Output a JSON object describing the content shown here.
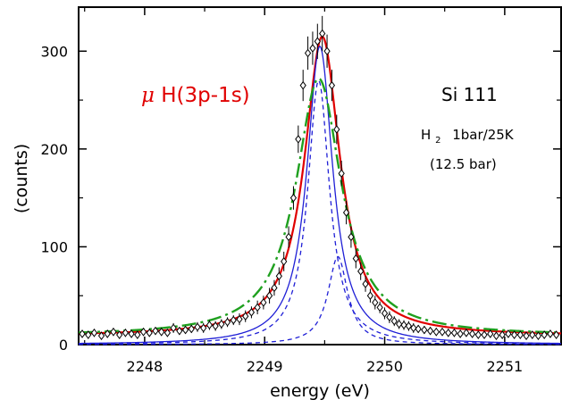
{
  "chart_data": {
    "type": "scatter",
    "title": "",
    "xlabel": "energy (eV)",
    "ylabel": "(counts)",
    "xlim": [
      2247.45,
      2251.47
    ],
    "ylim": [
      0,
      345
    ],
    "x_ticks": [
      2248,
      2249,
      2250,
      2251
    ],
    "y_ticks": [
      0,
      100,
      200,
      300
    ],
    "grid": false,
    "legend": "none",
    "annotations": {
      "line_label_mu": "μ",
      "line_label_rest": "H(3p-1s)",
      "crystal": "Si 111",
      "target_prefix": "H",
      "target_subscript": "2",
      "target_rest": "1bar/25K",
      "equivalent": "(12.5 bar)"
    },
    "colors": {
      "data": "#000000",
      "total_fit": "#e00000",
      "component_fit": "#1f1fd6",
      "alternative_fit": "#1fa01f",
      "label": "#e00000"
    },
    "series": [
      {
        "style": "points-with-errorbars",
        "marker": "diamond-open",
        "x": [
          2247.48,
          2247.53,
          2247.58,
          2247.64,
          2247.69,
          2247.74,
          2247.79,
          2247.84,
          2247.89,
          2247.94,
          2247.99,
          2248.04,
          2248.09,
          2248.14,
          2248.19,
          2248.24,
          2248.29,
          2248.34,
          2248.39,
          2248.44,
          2248.49,
          2248.54,
          2248.59,
          2248.64,
          2248.69,
          2248.74,
          2248.79,
          2248.84,
          2248.89,
          2248.94,
          2248.99,
          2249.04,
          2249.08,
          2249.12,
          2249.16,
          2249.2,
          2249.24,
          2249.28,
          2249.32,
          2249.36,
          2249.4,
          2249.44,
          2249.48,
          2249.52,
          2249.56,
          2249.6,
          2249.64,
          2249.68,
          2249.72,
          2249.76,
          2249.8,
          2249.84,
          2249.88,
          2249.92,
          2249.96,
          2250.0,
          2250.04,
          2250.08,
          2250.12,
          2250.16,
          2250.2,
          2250.24,
          2250.28,
          2250.33,
          2250.38,
          2250.43,
          2250.48,
          2250.53,
          2250.58,
          2250.63,
          2250.68,
          2250.73,
          2250.78,
          2250.83,
          2250.88,
          2250.93,
          2250.98,
          2251.03,
          2251.08,
          2251.13,
          2251.18,
          2251.23,
          2251.28,
          2251.33,
          2251.38,
          2251.43
        ],
        "y": [
          11,
          10,
          12,
          9,
          11,
          13,
          10,
          12,
          11,
          10,
          13,
          12,
          14,
          13,
          12,
          17,
          14,
          15,
          16,
          18,
          17,
          20,
          19,
          21,
          23,
          25,
          26,
          29,
          33,
          38,
          43,
          50,
          58,
          70,
          85,
          110,
          150,
          210,
          265,
          298,
          303,
          310,
          318,
          300,
          265,
          220,
          175,
          135,
          110,
          88,
          75,
          62,
          50,
          43,
          38,
          32,
          28,
          24,
          21,
          20,
          19,
          17,
          16,
          15,
          14,
          13,
          13,
          12,
          12,
          11,
          12,
          11,
          10,
          10,
          11,
          9,
          10,
          11,
          10,
          10,
          9,
          10,
          9,
          10,
          11,
          10
        ],
        "error": [
          4,
          4,
          4,
          4,
          4,
          4,
          4,
          4,
          4,
          4,
          4,
          4,
          4,
          4,
          4,
          5,
          4,
          4,
          4,
          5,
          5,
          5,
          5,
          5,
          5,
          5,
          6,
          6,
          6,
          7,
          7,
          8,
          8,
          9,
          10,
          11,
          12,
          14,
          16,
          17,
          17,
          18,
          18,
          17,
          16,
          15,
          13,
          12,
          11,
          10,
          9,
          8,
          7,
          7,
          6,
          6,
          6,
          5,
          5,
          5,
          5,
          5,
          4,
          4,
          4,
          4,
          4,
          4,
          4,
          4,
          4,
          4,
          4,
          4,
          4,
          4,
          4,
          4,
          4,
          4,
          4,
          4,
          4,
          4,
          4,
          4
        ]
      },
      {
        "style": "solid",
        "color": "#e00000",
        "model": "lorentzian",
        "peak": 2249.48,
        "amplitude": 306,
        "hwhm": 0.18,
        "baseline": 9
      },
      {
        "style": "solid",
        "color": "#1f1fd6",
        "model": "lorentzian",
        "peak": 2249.46,
        "amplitude": 305,
        "hwhm": 0.13,
        "baseline": 0
      },
      {
        "style": "dashed",
        "color": "#1f1fd6",
        "model": "lorentzian",
        "peak": 2249.45,
        "amplitude": 270,
        "hwhm": 0.11,
        "baseline": 0
      },
      {
        "style": "dashed",
        "color": "#1f1fd6",
        "model": "lorentzian",
        "peak": 2249.61,
        "amplitude": 90,
        "hwhm": 0.1,
        "baseline": 0
      },
      {
        "style": "dash-dot",
        "color": "#1fa01f",
        "model": "lorentzian",
        "peak": 2249.45,
        "amplitude": 263,
        "hwhm": 0.23,
        "baseline": 9
      }
    ]
  }
}
